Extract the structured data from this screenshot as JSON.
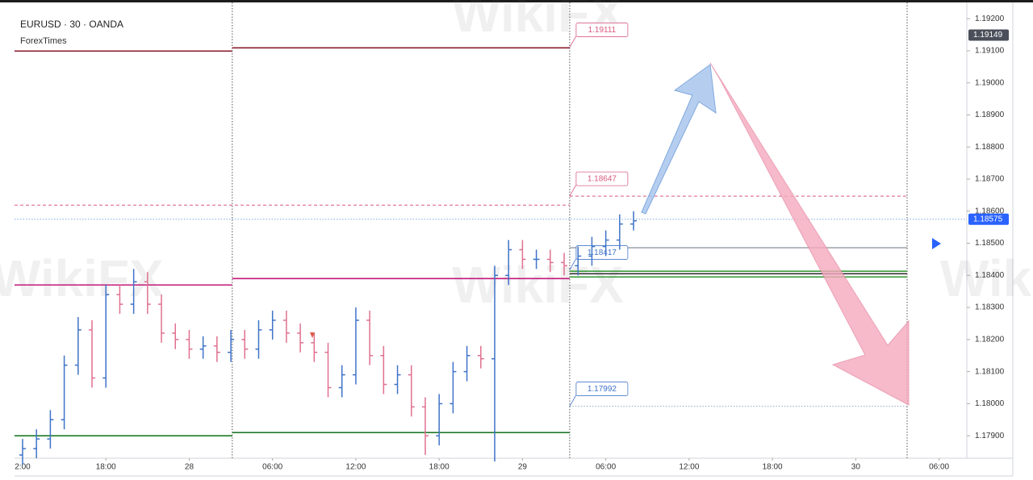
{
  "chart_data": {
    "type": "ohlc",
    "title": "EURUSD · 30 · OANDA",
    "subtitle": "ForexTimes",
    "watermark": "WikiFX",
    "up_color": "#3f73c8",
    "down_color": "#e0708f",
    "x": [
      0,
      2,
      4,
      6,
      8,
      10,
      12,
      14,
      16,
      18,
      20,
      22,
      24,
      26,
      28,
      30,
      32,
      34,
      36,
      38,
      40,
      42,
      44,
      46,
      48,
      50,
      52,
      54,
      56,
      58,
      60,
      62,
      64,
      66,
      68,
      70,
      72,
      74,
      76,
      78,
      80,
      82,
      84,
      86,
      88
    ],
    "open": [
      1.1784,
      1.1786,
      1.1789,
      1.1795,
      1.1812,
      1.1823,
      1.1808,
      1.1834,
      1.1831,
      1.1838,
      1.1831,
      1.1822,
      1.182,
      1.1817,
      1.1818,
      1.1816,
      1.182,
      1.1817,
      1.1823,
      1.1826,
      1.1822,
      1.1819,
      1.1816,
      1.1805,
      1.1809,
      1.1826,
      1.1815,
      1.1806,
      1.1809,
      1.1799,
      1.179,
      1.18,
      1.181,
      1.1815,
      1.1814,
      1.184,
      1.1848,
      1.1845,
      1.1845,
      1.1844,
      1.1843,
      1.1846,
      1.1849,
      1.1851,
      1.1856
    ],
    "high": [
      1.1789,
      1.1792,
      1.1798,
      1.1815,
      1.1827,
      1.1826,
      1.1837,
      1.1837,
      1.1842,
      1.1841,
      1.1834,
      1.1825,
      1.1823,
      1.1821,
      1.1821,
      1.1823,
      1.1823,
      1.1826,
      1.1829,
      1.1829,
      1.1825,
      1.1822,
      1.1819,
      1.1812,
      1.183,
      1.1829,
      1.1818,
      1.1812,
      1.1812,
      1.1802,
      1.1803,
      1.1813,
      1.1818,
      1.1818,
      1.1843,
      1.1851,
      1.1851,
      1.1848,
      1.1848,
      1.1847,
      1.1849,
      1.1852,
      1.1854,
      1.1859,
      1.186
    ],
    "low": [
      1.1781,
      1.1783,
      1.1786,
      1.1792,
      1.1809,
      1.1805,
      1.1805,
      1.1828,
      1.1828,
      1.1828,
      1.1819,
      1.1817,
      1.1814,
      1.1814,
      1.1813,
      1.1813,
      1.1814,
      1.1814,
      1.182,
      1.1819,
      1.1816,
      1.1813,
      1.1802,
      1.1802,
      1.1806,
      1.1812,
      1.1803,
      1.1803,
      1.1796,
      1.1784,
      1.1787,
      1.1797,
      1.1807,
      1.1811,
      1.1782,
      1.1837,
      1.1842,
      1.1842,
      1.1841,
      1.184,
      1.184,
      1.1843,
      1.1846,
      1.1848,
      1.1854
    ],
    "close": [
      1.1786,
      1.1789,
      1.1795,
      1.1812,
      1.1823,
      1.1808,
      1.1834,
      1.1831,
      1.1838,
      1.1831,
      1.1822,
      1.182,
      1.1817,
      1.1818,
      1.1816,
      1.182,
      1.1817,
      1.1823,
      1.1826,
      1.1822,
      1.1819,
      1.1816,
      1.1805,
      1.1809,
      1.1826,
      1.1815,
      1.1806,
      1.1809,
      1.1799,
      1.179,
      1.18,
      1.181,
      1.1815,
      1.1814,
      1.184,
      1.1848,
      1.1845,
      1.1845,
      1.1844,
      1.1843,
      1.1846,
      1.1849,
      1.1851,
      1.1856,
      1.1857
    ],
    "xlim": [
      -1.16,
      136
    ],
    "xticks": [
      {
        "value": 0,
        "label": "2:00"
      },
      {
        "value": 12,
        "label": "18:00"
      },
      {
        "value": 24,
        "label": "28"
      },
      {
        "value": 36,
        "label": "06:00"
      },
      {
        "value": 48,
        "label": "12:00"
      },
      {
        "value": 60,
        "label": "18:00"
      },
      {
        "value": 72,
        "label": "29"
      },
      {
        "value": 84,
        "label": "06:00"
      },
      {
        "value": 96,
        "label": "12:00"
      },
      {
        "value": 108,
        "label": "18:00"
      },
      {
        "value": 120,
        "label": "30"
      },
      {
        "value": 132,
        "label": "06:00"
      }
    ],
    "ylim": [
      1.1783,
      1.19213
    ],
    "yticks": [
      {
        "value": 1.179,
        "label": "1.17900"
      },
      {
        "value": 1.18,
        "label": "1.18000"
      },
      {
        "value": 1.181,
        "label": "1.18100"
      },
      {
        "value": 1.182,
        "label": "1.18200"
      },
      {
        "value": 1.183,
        "label": "1.18300"
      },
      {
        "value": 1.184,
        "label": "1.18400"
      },
      {
        "value": 1.185,
        "label": "1.18500"
      },
      {
        "value": 1.186,
        "label": "1.18600"
      },
      {
        "value": 1.187,
        "label": "1.18700"
      },
      {
        "value": 1.188,
        "label": "1.18800"
      },
      {
        "value": 1.189,
        "label": "1.18900"
      },
      {
        "value": 1.19,
        "label": "1.19000"
      },
      {
        "value": 1.191,
        "label": "1.19100"
      },
      {
        "value": 1.192,
        "label": "1.19200"
      }
    ],
    "sessions": [
      30.2,
      78.8,
      127.4
    ],
    "levels": [
      {
        "value": 1.19099,
        "from": -1.16,
        "to": 30.2,
        "color": "#8b1f2f",
        "style": "solid"
      },
      {
        "value": 1.1837,
        "from": -1.16,
        "to": 30.2,
        "color": "#c2187a",
        "style": "solid"
      },
      {
        "value": 1.179,
        "from": -1.16,
        "to": 30.2,
        "color": "#1f7a2a",
        "style": "solid"
      },
      {
        "value": 1.19109,
        "from": 30.2,
        "to": 78.8,
        "color": "#8b1f2f",
        "style": "solid"
      },
      {
        "value": 1.1839,
        "from": 30.2,
        "to": 78.8,
        "color": "#c2187a",
        "style": "solid"
      },
      {
        "value": 1.1791,
        "from": 30.2,
        "to": 78.8,
        "color": "#1f7a2a",
        "style": "solid"
      },
      {
        "value": 1.18619,
        "from": -1.16,
        "to": 78.8,
        "color": "#d9587f",
        "style": "dashed"
      },
      {
        "value": 1.18647,
        "from": 78.8,
        "to": 127.4,
        "color": "#d9587f",
        "style": "dashed"
      },
      {
        "value": 1.18486,
        "from": 78.8,
        "to": 127.4,
        "color": "#9aa0aa",
        "style": "solid"
      },
      {
        "value": 1.18413,
        "from": 78.8,
        "to": 127.4,
        "color": "#3a9a3a",
        "style": "solid"
      },
      {
        "value": 1.18405,
        "from": 78.8,
        "to": 127.4,
        "color": "#333333",
        "style": "solid"
      },
      {
        "value": 1.18395,
        "from": 78.8,
        "to": 127.4,
        "color": "#3a9a3a",
        "style": "solid"
      },
      {
        "value": 1.17992,
        "from": 78.8,
        "to": 127.4,
        "color": "#8fa6c8",
        "style": "dotted"
      },
      {
        "value": 1.18575,
        "from": -1.16,
        "to": 136,
        "color": "#7fa8e0",
        "style": "dotted"
      }
    ],
    "annotations": [
      {
        "label": "1.19111",
        "value": 1.19111,
        "color": "#d9587f"
      },
      {
        "label": "1.18647",
        "value": 1.18647,
        "color": "#d9587f"
      },
      {
        "label": "1.18417",
        "value": 1.18417,
        "color": "#3f73c8"
      },
      {
        "label": "1.17992",
        "value": 1.17992,
        "color": "#3f73c8"
      }
    ],
    "price_labels": [
      {
        "value": 1.19149,
        "label": "1.19149",
        "color": "#4a4f5a"
      },
      {
        "value": 1.18575,
        "label": "1.18575",
        "color": "#2962ff"
      }
    ]
  }
}
